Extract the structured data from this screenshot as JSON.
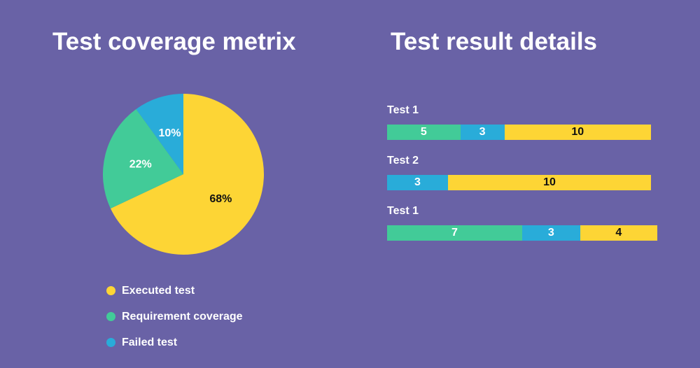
{
  "chart_data": [
    {
      "type": "pie",
      "title": "Test coverage metrix",
      "slices": [
        {
          "name": "Executed test",
          "value": 68,
          "label": "68%",
          "color": "#fdd535",
          "label_color": "#111111"
        },
        {
          "name": "Requirement coverage",
          "value": 22,
          "label": "22%",
          "color": "#42cb98",
          "label_color": "#ffffff"
        },
        {
          "name": "Failed test",
          "value": 10,
          "label": "10%",
          "color": "#29acd9",
          "label_color": "#ffffff"
        }
      ],
      "legend_position": "bottom"
    },
    {
      "type": "bar",
      "orientation": "horizontal-stacked",
      "title": "Test result details",
      "categories": [
        "Test 1",
        "Test 2",
        "Test 1"
      ],
      "rows": [
        [
          {
            "series": "Requirement coverage",
            "value": 5
          },
          {
            "series": "Failed test",
            "value": 3
          },
          {
            "series": "Executed test",
            "value": 10
          }
        ],
        [
          {
            "series": "Failed test",
            "value": 3
          },
          {
            "series": "Executed test",
            "value": 10
          }
        ],
        [
          {
            "series": "Requirement coverage",
            "value": 7
          },
          {
            "series": "Failed test",
            "value": 3
          },
          {
            "series": "Executed test",
            "value": 4
          }
        ]
      ],
      "colors": {
        "Executed test": "#fdd535",
        "Requirement coverage": "#42cb98",
        "Failed test": "#29acd9"
      }
    }
  ],
  "background": "#6962a6"
}
